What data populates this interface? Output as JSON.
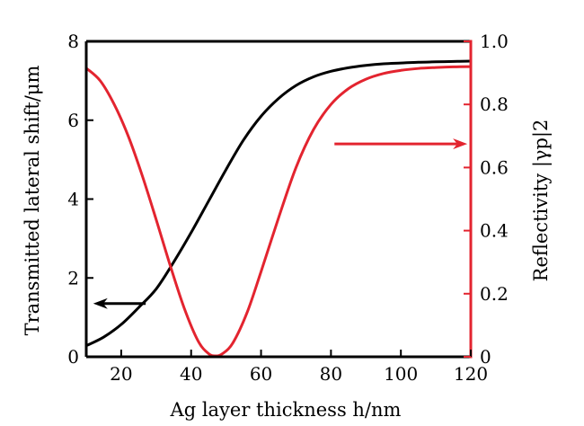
{
  "chart_data": {
    "type": "line",
    "xlabel": "Ag layer thickness h/nm",
    "ylabel_left": "Transmitted lateral shift/μm",
    "ylabel_right": "Reflectivity |γp|2",
    "xlim": [
      10,
      120
    ],
    "ylim_left": [
      0,
      8
    ],
    "ylim_right": [
      0,
      1.0
    ],
    "x_ticks": [
      "20",
      "40",
      "60",
      "80",
      "100",
      "120"
    ],
    "y_left_ticks": [
      "0",
      "2",
      "4",
      "6",
      "8"
    ],
    "y_right_ticks": [
      "0",
      "0.2",
      "0.4",
      "0.6",
      "0.8",
      "1.0"
    ],
    "grid": false,
    "legend": "none",
    "series": [
      {
        "axis": "left",
        "color": "#000000",
        "x": [
          10,
          15,
          20,
          25,
          30,
          35,
          40,
          45,
          50,
          55,
          60,
          65,
          70,
          75,
          80,
          85,
          90,
          95,
          100,
          105,
          110,
          115,
          120
        ],
        "y": [
          0.28,
          0.5,
          0.82,
          1.25,
          1.72,
          2.4,
          3.15,
          3.95,
          4.75,
          5.5,
          6.1,
          6.55,
          6.88,
          7.1,
          7.24,
          7.33,
          7.39,
          7.43,
          7.45,
          7.47,
          7.48,
          7.49,
          7.5
        ]
      },
      {
        "axis": "right",
        "color": "#e3242f",
        "x": [
          10,
          14,
          18,
          22,
          26,
          30,
          34,
          38,
          42,
          45,
          47,
          49,
          52,
          56,
          60,
          65,
          70,
          75,
          80,
          85,
          90,
          95,
          100,
          105,
          110,
          115,
          120
        ],
        "y": [
          0.915,
          0.875,
          0.8,
          0.7,
          0.575,
          0.435,
          0.29,
          0.155,
          0.05,
          0.01,
          0.003,
          0.01,
          0.045,
          0.14,
          0.27,
          0.44,
          0.6,
          0.72,
          0.8,
          0.85,
          0.88,
          0.898,
          0.908,
          0.914,
          0.917,
          0.919,
          0.92
        ]
      }
    ],
    "annotations": [
      {
        "type": "arrow",
        "direction": "left",
        "color": "#000000",
        "x": [
          27,
          12
        ],
        "y_left": 1.35
      },
      {
        "type": "arrow",
        "direction": "right",
        "color": "#e3242f",
        "x": [
          81,
          119
        ],
        "y_left": 5.4
      }
    ]
  }
}
